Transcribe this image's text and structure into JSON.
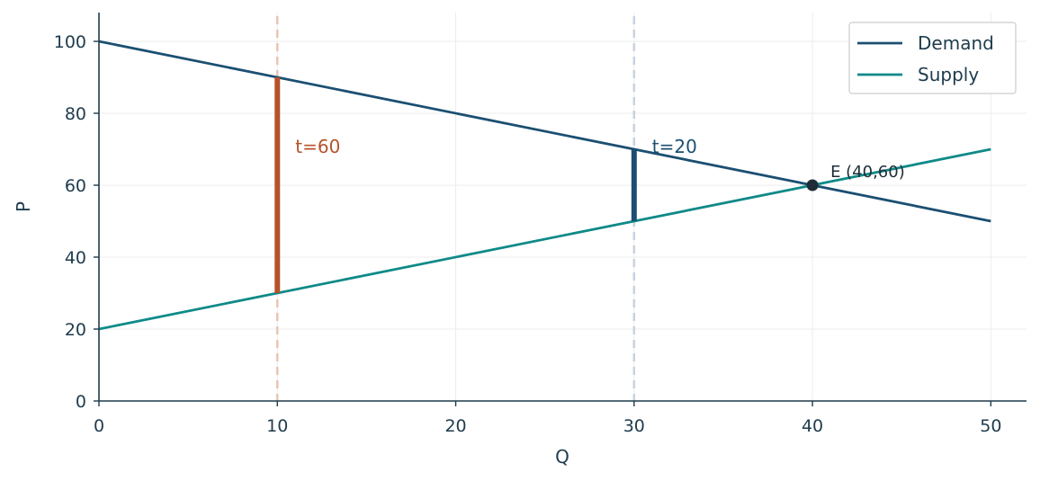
{
  "chart_data": {
    "type": "line",
    "xlabel": "Q",
    "ylabel": "P",
    "xlim": [
      0,
      52
    ],
    "ylim": [
      0,
      108
    ],
    "xticks": [
      0,
      10,
      20,
      30,
      40,
      50
    ],
    "yticks": [
      0,
      20,
      40,
      60,
      80,
      100
    ],
    "grid": true,
    "legend_position": "top-right",
    "series": [
      {
        "name": "Demand",
        "color": "#1b4f72",
        "x": [
          0,
          50
        ],
        "y": [
          100,
          50
        ]
      },
      {
        "name": "Supply",
        "color": "#0e8a88",
        "x": [
          0,
          50
        ],
        "y": [
          20,
          70
        ]
      }
    ],
    "tax_wedges": [
      {
        "label": "t=60",
        "x": 10,
        "y_low": 30,
        "y_high": 90,
        "color": "#b5532a",
        "guide_color": "#e8c6b5"
      },
      {
        "label": "t=20",
        "x": 30,
        "y_low": 50,
        "y_high": 70,
        "color": "#1b4f72",
        "guide_color": "#c6d3e0"
      }
    ],
    "equilibrium": {
      "label": "E (40,60)",
      "x": 40,
      "y": 60,
      "color": "#1f2d36"
    }
  }
}
